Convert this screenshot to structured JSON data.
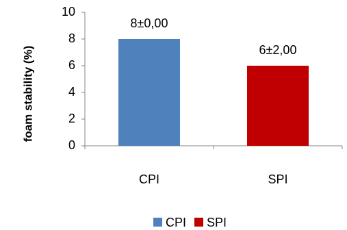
{
  "chart_data": {
    "type": "bar",
    "categories": [
      "CPI",
      "SPI"
    ],
    "values": [
      8,
      6
    ],
    "data_labels": [
      "8±0,00",
      "6±2,00"
    ],
    "colors": [
      "#4F81BD",
      "#C00000"
    ],
    "title": "",
    "xlabel": "",
    "ylabel": "foam stability (%)",
    "ylim": [
      0,
      10
    ],
    "yticks": [
      "0",
      "2",
      "4",
      "6",
      "8",
      "10"
    ],
    "grid": false,
    "legend": {
      "position": "bottom",
      "entries": [
        {
          "label": "CPI",
          "color": "#4F81BD"
        },
        {
          "label": "SPI",
          "color": "#C00000"
        }
      ]
    }
  }
}
